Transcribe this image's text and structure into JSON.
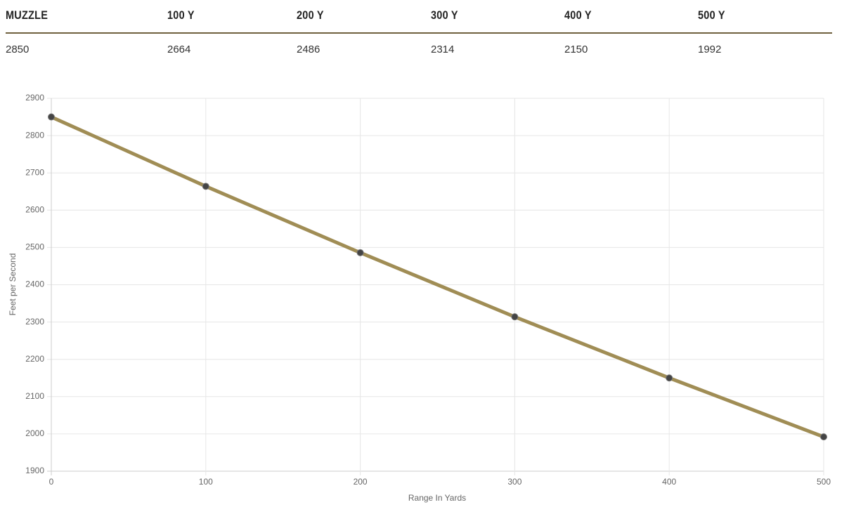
{
  "table": {
    "headers": [
      "MUZZLE",
      "100 Y",
      "200 Y",
      "300 Y",
      "400 Y",
      "500 Y"
    ],
    "rows": [
      [
        2850,
        2664,
        2486,
        2314,
        2150,
        1992
      ]
    ]
  },
  "chart_data": {
    "type": "line",
    "x": [
      0,
      100,
      200,
      300,
      400,
      500
    ],
    "values": [
      2850,
      2664,
      2486,
      2314,
      2150,
      1992
    ],
    "color": "#a08d55",
    "marker_color": "#444444",
    "xlabel": "Range In Yards",
    "ylabel": "Feet per Second",
    "xlim": [
      0,
      500
    ],
    "xticks": [
      0,
      100,
      200,
      300,
      400,
      500
    ],
    "ylim": [
      1900,
      2900
    ],
    "yticks": [
      1900,
      2000,
      2100,
      2200,
      2300,
      2400,
      2500,
      2600,
      2700,
      2800,
      2900
    ],
    "grid": true
  }
}
